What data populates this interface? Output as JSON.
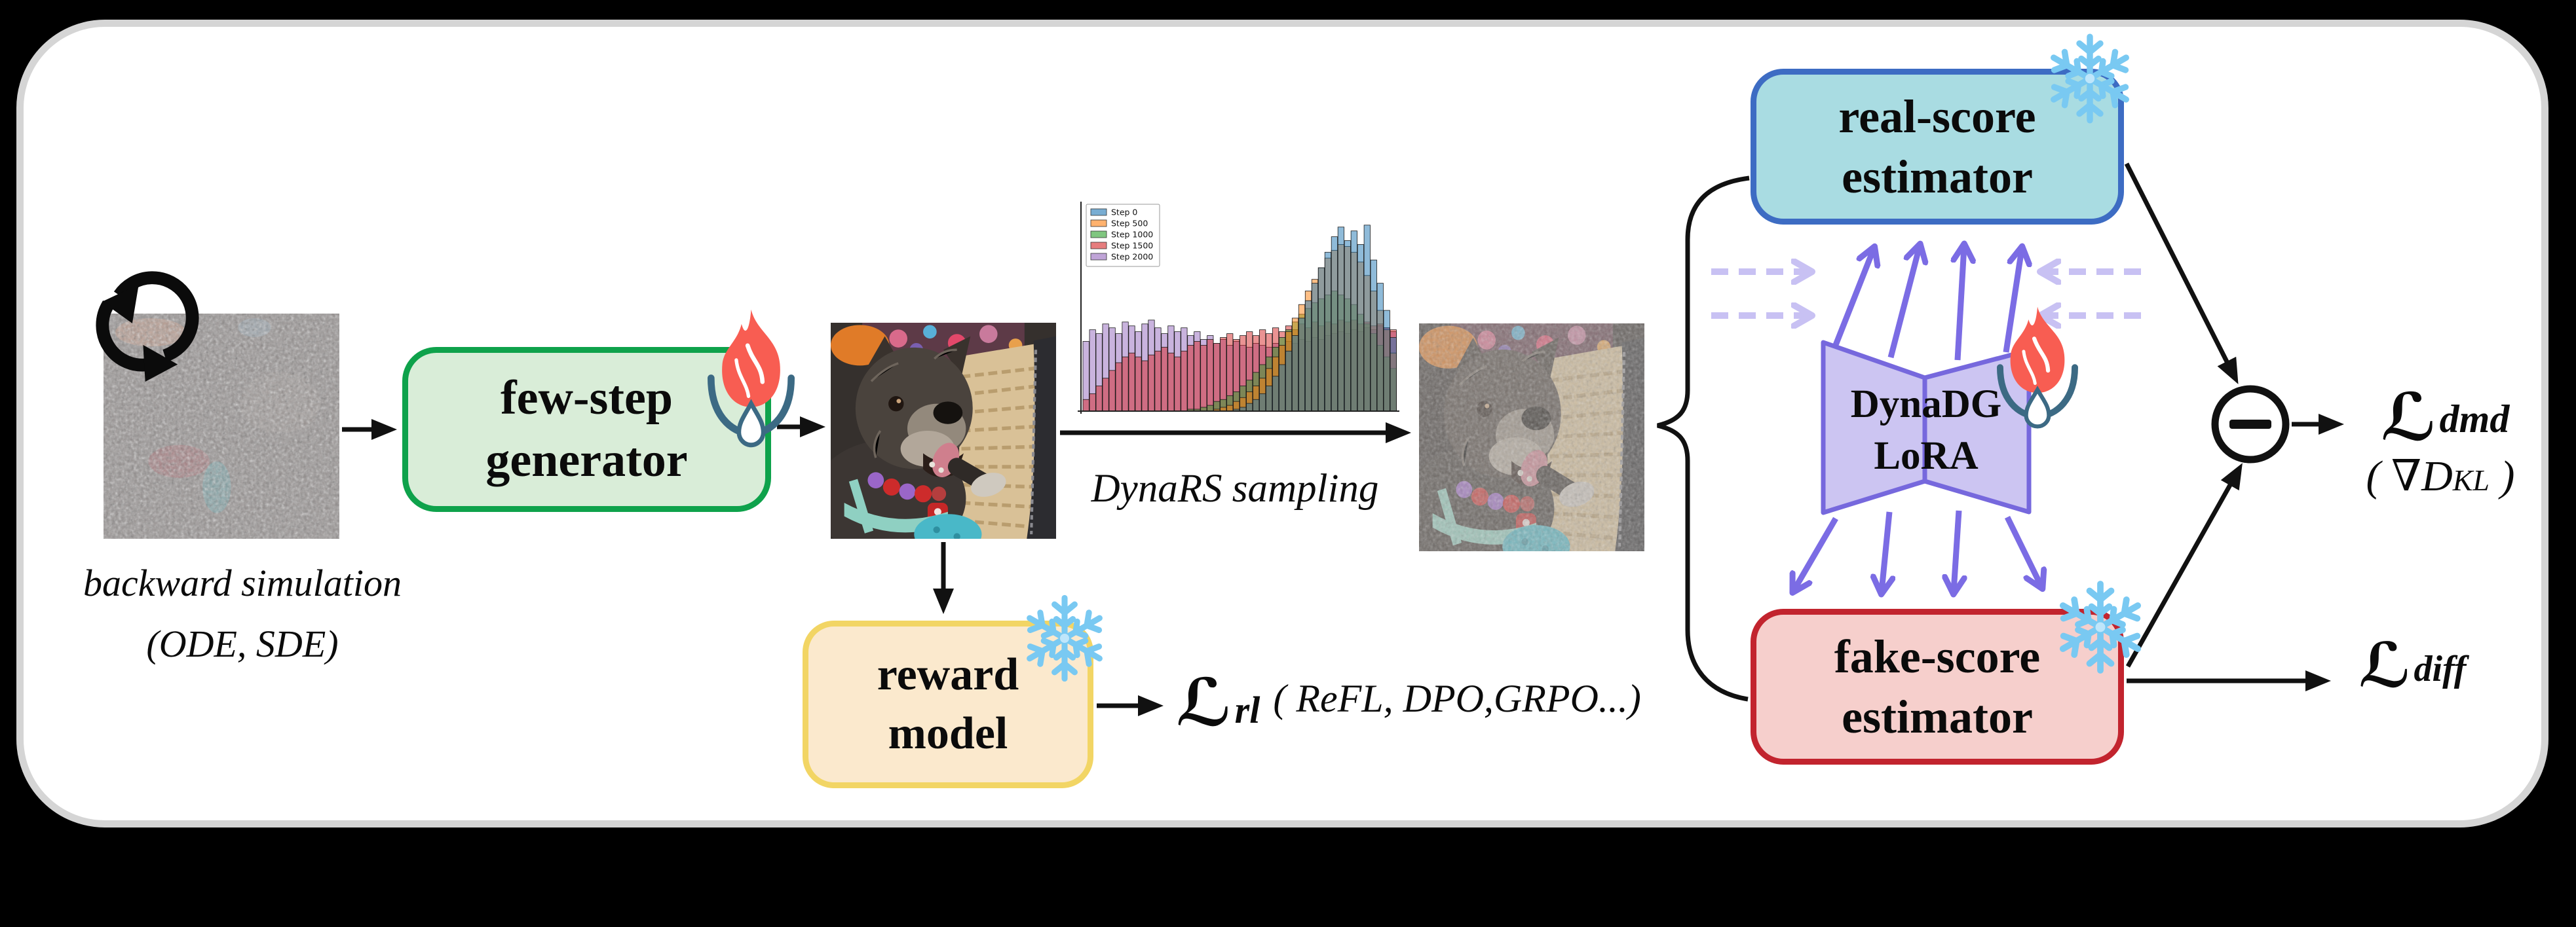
{
  "figure": {
    "kind": "diffusion distillation pipeline diagram",
    "background": "#000000",
    "panel_fill": "#ffffff",
    "panel_border": "#d5d5d5"
  },
  "nodes": {
    "generator": {
      "line1": "few-step",
      "line2": "generator",
      "fill": "#d9edd8",
      "border": "#0ea24b",
      "state_icon": "flame-droplet-icon"
    },
    "reward": {
      "line1": "reward",
      "line2": "model",
      "fill": "#fbe9cd",
      "border": "#f2d564",
      "state_icon": "snowflake-icon"
    },
    "real": {
      "line1": "real-score",
      "line2": "estimator",
      "fill": "#a9dce2",
      "border": "#3d6cc3",
      "state_icon": "snowflake-icon"
    },
    "fake": {
      "line1": "fake-score",
      "line2": "estimator",
      "fill": "#f6cfcc",
      "border": "#c2242e",
      "state_icon": "snowflake-icon"
    },
    "lora": {
      "line1": "DynaDG",
      "line2": "LoRA",
      "fill": "#ccc5f2",
      "border": "#7668dd",
      "state_icon": "flame-droplet-icon"
    }
  },
  "annotations": {
    "backward_line1": "backward simulation",
    "backward_line2": "(ODE, SDE)",
    "dynars": "DynaRS sampling"
  },
  "losses": {
    "rl": {
      "symbol": "ℒ",
      "sub": "rl",
      "note": "( ReFL, DPO,GRPO...)"
    },
    "dmd": {
      "symbol": "ℒ",
      "sub": "dmd",
      "note_open": "( ",
      "note_main": "∇D",
      "note_sub": "KL",
      "note_close": " )"
    },
    "diff": {
      "symbol": "ℒ",
      "sub": "diff"
    }
  },
  "icons": {
    "cycle": "backward-simulation-cycle-icon",
    "flame": "trainable-flame-droplet-icon",
    "snowflake": "frozen-snowflake-icon",
    "minus": "subtract-node-icon"
  },
  "colors": {
    "arrow_black": "#111111",
    "arrow_purple": "#7b6ce4",
    "arrow_dashed_lavender": "#c8c1f3",
    "flame_red": "#f85d52",
    "flame_arc_blue": "#3c6a84",
    "snowflake_blue": "#79c9f2",
    "panel_border_gray": "#d5d5d5"
  },
  "chart_data": {
    "type": "bar",
    "subtype": "overlapping-histogram",
    "title": "",
    "xlabel": "",
    "ylabel": "",
    "grid": false,
    "legend_position": "upper left",
    "bins": 48,
    "ylim": [
      0,
      1
    ],
    "series": [
      {
        "name": "Step 0",
        "color": "#1f77b4",
        "values": [
          0,
          0,
          0,
          0,
          0,
          0,
          0,
          0,
          0,
          0,
          0,
          0,
          0,
          0,
          0,
          0,
          0,
          0,
          0,
          0,
          0,
          0,
          0,
          0.01,
          0.02,
          0.04,
          0.06,
          0.09,
          0.13,
          0.18,
          0.24,
          0.31,
          0.39,
          0.48,
          0.57,
          0.66,
          0.74,
          0.82,
          0.9,
          0.95,
          0.88,
          0.93,
          0.86,
          0.96,
          0.78,
          0.66,
          0.52,
          0.38
        ]
      },
      {
        "name": "Step 500",
        "color": "#ff7f0e",
        "values": [
          0,
          0,
          0,
          0,
          0,
          0,
          0,
          0,
          0,
          0,
          0,
          0,
          0,
          0,
          0,
          0,
          0,
          0,
          0,
          0,
          0.01,
          0.02,
          0.03,
          0.05,
          0.07,
          0.1,
          0.13,
          0.17,
          0.22,
          0.28,
          0.34,
          0.41,
          0.48,
          0.55,
          0.62,
          0.68,
          0.74,
          0.79,
          0.83,
          0.86,
          0.85,
          0.82,
          0.77,
          0.7,
          0.62,
          0.52,
          0.42,
          0.3
        ]
      },
      {
        "name": "Step 1000",
        "color": "#2ca02c",
        "values": [
          0,
          0,
          0,
          0,
          0,
          0,
          0,
          0,
          0,
          0,
          0,
          0,
          0,
          0,
          0,
          0,
          0.01,
          0.01,
          0.02,
          0.03,
          0.05,
          0.06,
          0.08,
          0.1,
          0.13,
          0.16,
          0.2,
          0.24,
          0.28,
          0.33,
          0.38,
          0.42,
          0.46,
          0.5,
          0.53,
          0.56,
          0.58,
          0.6,
          0.62,
          0.6,
          0.58,
          0.55,
          0.5,
          0.45,
          0.4,
          0.34,
          0.28,
          0.22
        ]
      },
      {
        "name": "Step 1500",
        "color": "#d62728",
        "values": [
          0.06,
          0.09,
          0.13,
          0.17,
          0.21,
          0.25,
          0.28,
          0.3,
          0.28,
          0.26,
          0.29,
          0.31,
          0.33,
          0.3,
          0.28,
          0.31,
          0.34,
          0.36,
          0.34,
          0.37,
          0.35,
          0.38,
          0.4,
          0.37,
          0.39,
          0.41,
          0.39,
          0.42,
          0.4,
          0.43,
          0.41,
          0.44,
          0.42,
          0.45,
          0.43,
          0.46,
          0.44,
          0.46,
          0.45,
          0.47,
          0.46,
          0.47,
          0.45,
          0.46,
          0.44,
          0.45,
          0.43,
          0.42
        ]
      },
      {
        "name": "Step 2000",
        "color": "#9467bd",
        "values": [
          0.36,
          0.42,
          0.4,
          0.45,
          0.43,
          0.4,
          0.46,
          0.44,
          0.41,
          0.45,
          0.47,
          0.43,
          0.4,
          0.44,
          0.41,
          0.43,
          0.39,
          0.41,
          0.37,
          0.39,
          0.35,
          0.37,
          0.34,
          0.36,
          0.34,
          0.33,
          0.35,
          0.34,
          0.33,
          0.35,
          0.34,
          0.36,
          0.35,
          0.37,
          0.36,
          0.38,
          0.37,
          0.39,
          0.4,
          0.41,
          0.4,
          0.42,
          0.41,
          0.43,
          0.42,
          0.44,
          0.43,
          0.41
        ]
      }
    ]
  }
}
